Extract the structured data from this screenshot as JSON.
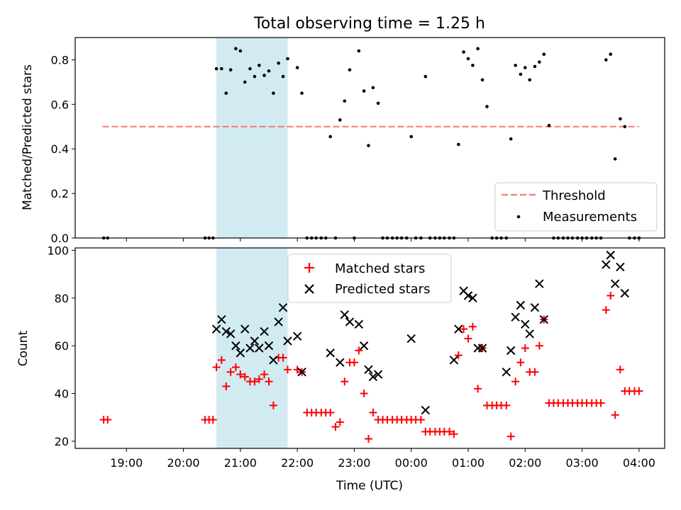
{
  "figure": {
    "title": "Total observing time = 1.25 h",
    "colors": {
      "threshold": "#f77b72",
      "measurements": "#000000",
      "matched": "#ff0000",
      "predicted": "#000000",
      "shade": "#add8e6"
    }
  },
  "chart_data": [
    {
      "type": "scatter",
      "panel": "top",
      "title": "Total observing time = 1.25 h",
      "xlabel": "",
      "ylabel": "Matched/Predicted stars",
      "x_unit": "hours since 00:00 UTC",
      "xlim": [
        -5.9,
        4.45
      ],
      "ylim": [
        0,
        0.9
      ],
      "yticks": [
        "0.0",
        "0.2",
        "0.4",
        "0.6",
        "0.8"
      ],
      "shaded_x_range": [
        -3.42,
        -2.17
      ],
      "grid": false,
      "legend_position": "lower-right",
      "legend": [
        "Threshold",
        "Measurements"
      ],
      "series": [
        {
          "name": "Threshold",
          "kind": "dashed-line",
          "x": [
            -5.42,
            4.0
          ],
          "y": [
            0.5,
            0.5
          ]
        },
        {
          "name": "Measurements",
          "kind": "dots",
          "x": [
            -5.4,
            -5.33,
            -3.62,
            -3.55,
            -3.48,
            -3.42,
            -3.33,
            -3.25,
            -3.17,
            -3.08,
            -3.0,
            -2.92,
            -2.83,
            -2.75,
            -2.67,
            -2.58,
            -2.5,
            -2.42,
            -2.33,
            -2.25,
            -2.17,
            -2.0,
            -1.92,
            -1.83,
            -1.75,
            -1.67,
            -1.58,
            -1.5,
            -1.42,
            -1.33,
            -1.25,
            -1.17,
            -1.08,
            -1.0,
            -0.92,
            -0.83,
            -0.75,
            -0.67,
            -0.58,
            -0.5,
            -0.42,
            -0.33,
            -0.25,
            -0.17,
            -0.08,
            0.0,
            0.08,
            0.17,
            0.25,
            0.33,
            0.42,
            0.5,
            0.58,
            0.67,
            0.75,
            0.83,
            0.92,
            1.0,
            1.08,
            1.17,
            1.25,
            1.33,
            1.42,
            1.5,
            1.58,
            1.67,
            1.75,
            1.83,
            1.92,
            2.0,
            2.08,
            2.17,
            2.25,
            2.33,
            2.42,
            2.5,
            2.58,
            2.67,
            2.75,
            2.83,
            2.92,
            3.0,
            3.08,
            3.17,
            3.25,
            3.33,
            3.42,
            3.5,
            3.58,
            3.67,
            3.75,
            3.83,
            3.92,
            4.0
          ],
          "y": [
            0,
            0,
            0,
            0,
            0,
            0.76,
            0.76,
            0.65,
            0.755,
            0.85,
            0.84,
            0.7,
            0.76,
            0.725,
            0.775,
            0.73,
            0.75,
            0.65,
            0.785,
            0.725,
            0.805,
            0.765,
            0.65,
            0,
            0,
            0,
            0,
            0,
            0.455,
            0,
            0.53,
            0.615,
            0.755,
            0,
            0.84,
            0.66,
            0.415,
            0.675,
            0.605,
            0,
            0,
            0,
            0,
            0,
            0,
            0.455,
            0,
            0,
            0.725,
            0,
            0,
            0,
            0,
            0,
            0,
            0.42,
            0.835,
            0.805,
            0.775,
            0.85,
            0.71,
            0.59,
            0,
            0,
            0,
            0,
            0.445,
            0.775,
            0.735,
            0.765,
            0.71,
            0.77,
            0.79,
            0.825,
            0.505,
            0,
            0,
            0,
            0,
            0,
            0,
            0,
            0,
            0,
            0,
            0,
            0.8,
            0.825,
            0.355,
            0.535,
            0.5,
            0,
            0,
            0
          ]
        }
      ]
    },
    {
      "type": "scatter",
      "panel": "bottom",
      "xlabel": "Time (UTC)",
      "ylabel": "Count",
      "x_unit": "hours since 00:00 UTC",
      "xlim": [
        -5.9,
        4.45
      ],
      "ylim": [
        17,
        101
      ],
      "xticks": [
        {
          "x": -5.0,
          "label": "19:00"
        },
        {
          "x": -4.0,
          "label": "20:00"
        },
        {
          "x": -3.0,
          "label": "21:00"
        },
        {
          "x": -2.0,
          "label": "22:00"
        },
        {
          "x": -1.0,
          "label": "23:00"
        },
        {
          "x": 0.0,
          "label": "00:00"
        },
        {
          "x": 1.0,
          "label": "01:00"
        },
        {
          "x": 2.0,
          "label": "02:00"
        },
        {
          "x": 3.0,
          "label": "03:00"
        },
        {
          "x": 4.0,
          "label": "04:00"
        }
      ],
      "yticks": [
        "20",
        "40",
        "60",
        "80",
        "100"
      ],
      "shaded_x_range": [
        -3.42,
        -2.17
      ],
      "grid": false,
      "legend_position": "upper-center",
      "legend": [
        "Matched stars",
        "Predicted stars"
      ],
      "series": [
        {
          "name": "Matched stars",
          "marker": "plus",
          "x": [
            -5.4,
            -5.33,
            -3.62,
            -3.55,
            -3.48,
            -3.42,
            -3.33,
            -3.25,
            -3.17,
            -3.08,
            -3.0,
            -2.92,
            -2.83,
            -2.75,
            -2.67,
            -2.58,
            -2.5,
            -2.42,
            -2.33,
            -2.25,
            -2.17,
            -2.0,
            -1.92,
            -1.83,
            -1.75,
            -1.67,
            -1.58,
            -1.5,
            -1.42,
            -1.33,
            -1.25,
            -1.17,
            -1.08,
            -1.0,
            -0.92,
            -0.83,
            -0.75,
            -0.67,
            -0.58,
            -0.5,
            -0.42,
            -0.33,
            -0.25,
            -0.17,
            -0.08,
            0.0,
            0.08,
            0.17,
            0.25,
            0.33,
            0.42,
            0.5,
            0.58,
            0.67,
            0.75,
            0.83,
            0.92,
            1.0,
            1.08,
            1.17,
            1.25,
            1.33,
            1.42,
            1.5,
            1.58,
            1.67,
            1.75,
            1.83,
            1.92,
            2.0,
            2.08,
            2.17,
            2.25,
            2.33,
            2.42,
            2.5,
            2.58,
            2.67,
            2.75,
            2.83,
            2.92,
            3.0,
            3.08,
            3.17,
            3.25,
            3.33,
            3.42,
            3.5,
            3.58,
            3.67,
            3.75,
            3.83,
            3.92,
            4.0
          ],
          "y": [
            29,
            29,
            29,
            29,
            29,
            51,
            54,
            43,
            49,
            51,
            48,
            47,
            45,
            45,
            46,
            48,
            45,
            35,
            55,
            55,
            50,
            50,
            49,
            32,
            32,
            32,
            32,
            32,
            32,
            26,
            28,
            45,
            53,
            53,
            58,
            40,
            21,
            32,
            29,
            29,
            29,
            29,
            29,
            29,
            29,
            29,
            29,
            29,
            24,
            24,
            24,
            24,
            24,
            24,
            23,
            56,
            67,
            63,
            68,
            42,
            59,
            35,
            35,
            35,
            35,
            35,
            22,
            45,
            53,
            59,
            49,
            49,
            60,
            71,
            36,
            36,
            36,
            36,
            36,
            36,
            36,
            36,
            36,
            36,
            36,
            36,
            75,
            81,
            31,
            50,
            41,
            41,
            41,
            41
          ]
        },
        {
          "name": "Predicted stars",
          "marker": "x",
          "x": [
            -3.42,
            -3.33,
            -3.25,
            -3.17,
            -3.08,
            -3.0,
            -2.92,
            -2.83,
            -2.75,
            -2.67,
            -2.58,
            -2.5,
            -2.42,
            -2.33,
            -2.25,
            -2.17,
            -2.0,
            -1.92,
            -1.42,
            -1.25,
            -1.17,
            -1.08,
            -0.92,
            -0.83,
            -0.75,
            -0.67,
            -0.58,
            0.0,
            0.25,
            0.75,
            0.83,
            0.92,
            1.0,
            1.08,
            1.17,
            1.25,
            1.67,
            1.75,
            1.83,
            1.92,
            2.0,
            2.08,
            2.17,
            2.25,
            2.33,
            3.42,
            3.5,
            3.58,
            3.67,
            3.75
          ],
          "y": [
            67,
            71,
            66,
            65,
            60,
            57,
            67,
            59,
            62,
            59,
            66,
            60,
            54,
            70,
            76,
            62,
            64,
            49,
            57,
            53,
            73,
            70,
            69,
            60,
            50,
            47,
            48,
            63,
            33,
            54,
            67,
            83,
            81,
            80,
            59,
            59,
            49,
            58,
            72,
            77,
            69,
            65,
            76,
            86,
            71,
            94,
            98,
            86,
            93,
            82
          ]
        }
      ]
    }
  ]
}
